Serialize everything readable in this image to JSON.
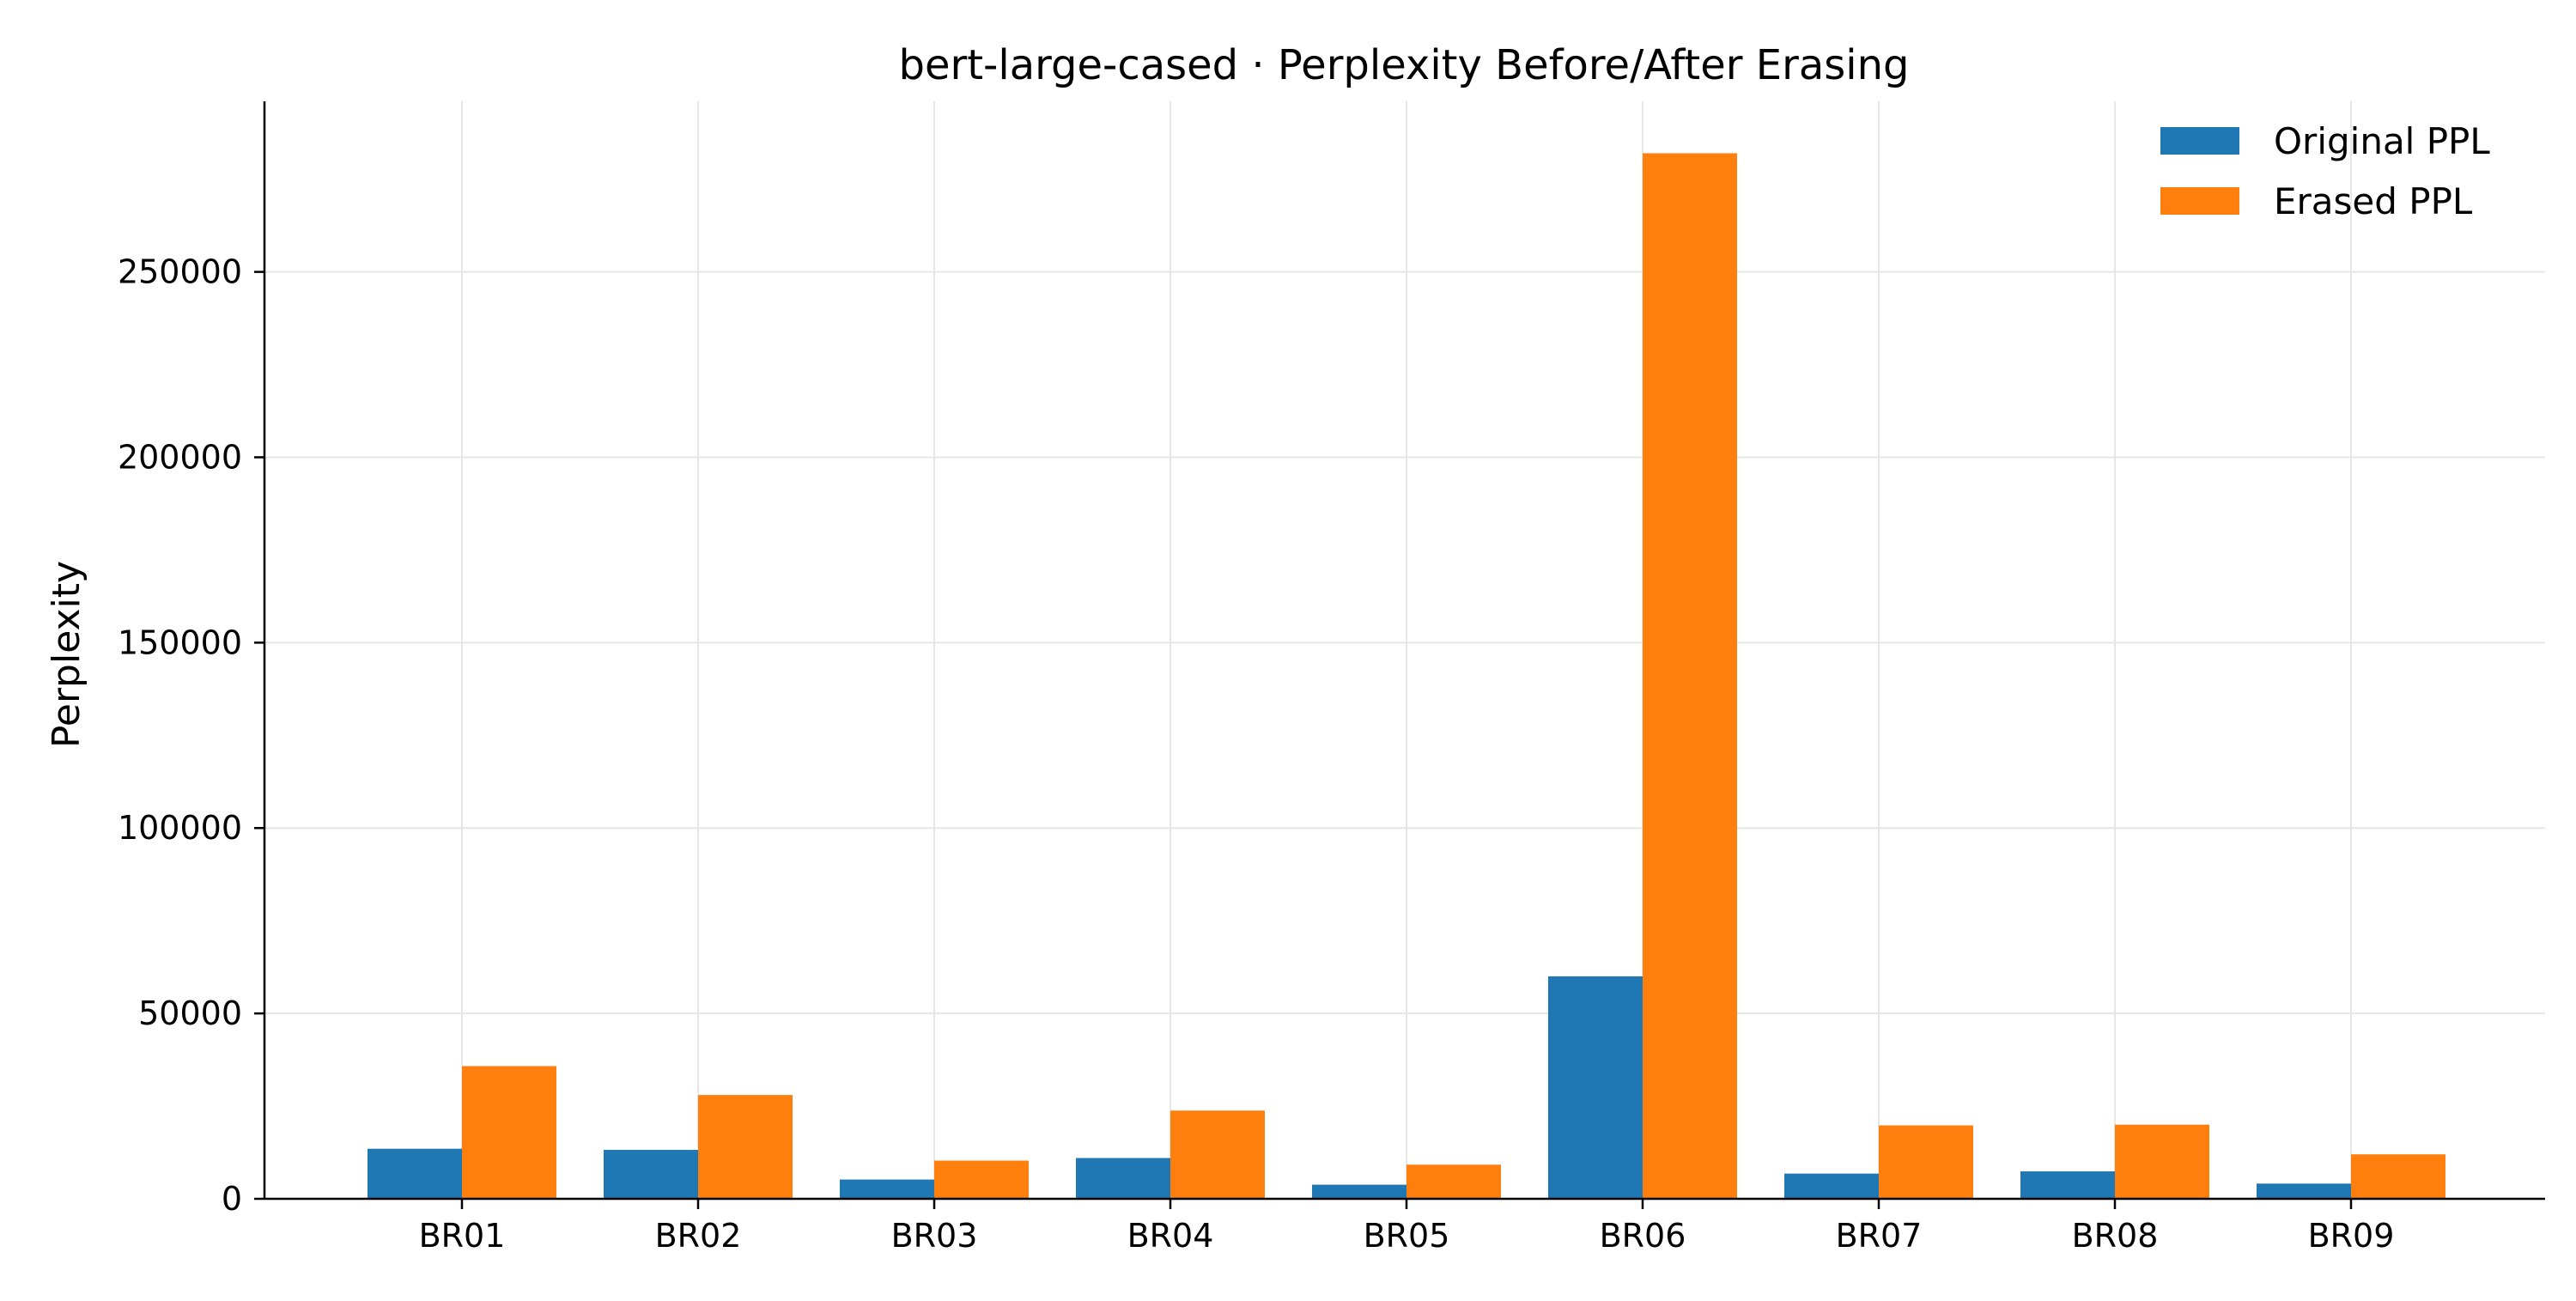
{
  "chart_data": {
    "type": "bar",
    "title": "bert-large-cased · Perplexity Before/After Erasing",
    "xlabel": "",
    "ylabel": "Perplexity",
    "categories": [
      "BR01",
      "BR02",
      "BR03",
      "BR04",
      "BR05",
      "BR06",
      "BR07",
      "BR08",
      "BR09"
    ],
    "series": [
      {
        "name": "Original PPL",
        "color": "#1f77b4",
        "values": [
          13500,
          13200,
          5200,
          11000,
          3800,
          60000,
          6800,
          7400,
          4100
        ]
      },
      {
        "name": "Erased PPL",
        "color": "#ff7f0e",
        "values": [
          35800,
          28000,
          10300,
          23800,
          9200,
          282000,
          19800,
          20000,
          12000
        ]
      }
    ],
    "ylim": [
      0,
      296000
    ],
    "yticks": [
      0,
      50000,
      100000,
      150000,
      200000,
      250000
    ],
    "ytick_labels": [
      "0",
      "50000",
      "100000",
      "150000",
      "200000",
      "250000"
    ],
    "grid": true,
    "legend": "top-right"
  }
}
